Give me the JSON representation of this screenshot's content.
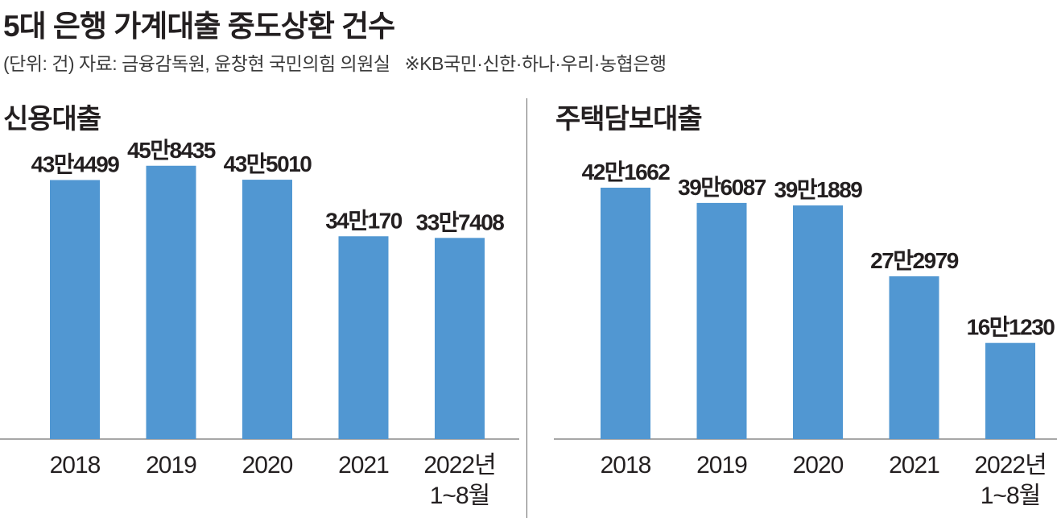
{
  "header": {
    "title": "5대 은행 가계대출 중도상환 건수",
    "subtitle": "(단위: 건) 자료: 금융감독원, 윤창현 국민의힘 의원실",
    "note": "※KB국민·신한·하나·우리·농협은행"
  },
  "colors": {
    "bar": "#5197d2",
    "axis": "#8a8a8a",
    "text": "#231f20"
  },
  "chart_data": [
    {
      "type": "bar",
      "title": "신용대출",
      "categories": [
        "2018",
        "2019",
        "2020",
        "2021",
        "2022년\n1~8월"
      ],
      "values": [
        434499,
        458435,
        435010,
        340170,
        337408
      ],
      "value_labels": [
        "43만4499",
        "45만8435",
        "43만5010",
        "34만170",
        "33만7408"
      ],
      "ylim": [
        0,
        500000
      ],
      "grid": false
    },
    {
      "type": "bar",
      "title": "주택담보대출",
      "categories": [
        "2018",
        "2019",
        "2020",
        "2021",
        "2022년\n1~8월"
      ],
      "values": [
        421662,
        396087,
        391889,
        272979,
        161230
      ],
      "value_labels": [
        "42만1662",
        "39만6087",
        "39만1889",
        "27만2979",
        "16만1230"
      ],
      "ylim": [
        0,
        500000
      ],
      "grid": false
    }
  ]
}
